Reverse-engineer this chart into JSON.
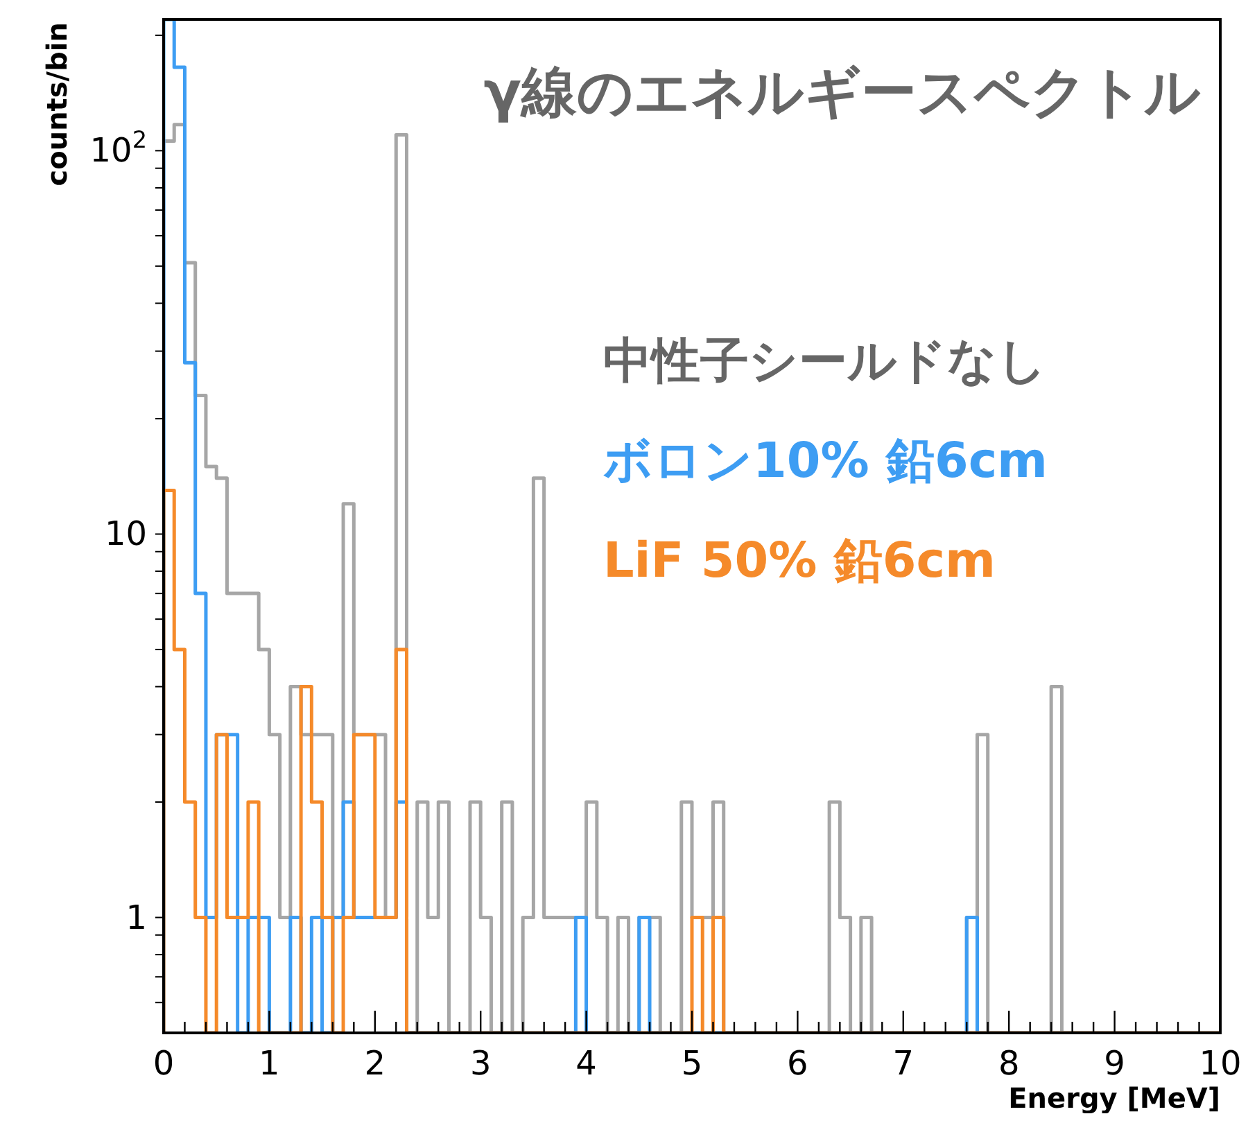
{
  "chart_data": {
    "type": "histogram",
    "title": "γ線のエネルギースペクトル",
    "xlabel": "Energy [MeV]",
    "ylabel": "counts/bin",
    "bins": [
      0,
      0.1,
      0.2,
      0.3,
      0.4,
      0.5,
      0.6,
      0.7,
      0.8,
      0.9,
      1,
      1.1,
      1.2,
      1.3,
      1.4,
      1.5,
      1.6,
      1.7,
      1.8,
      1.9,
      2,
      2.1,
      2.2,
      2.3,
      2.4,
      2.5,
      2.6,
      2.7,
      2.8,
      2.9,
      3,
      3.1,
      3.2,
      3.3,
      3.4,
      3.5,
      3.6,
      3.7,
      3.8,
      3.9,
      4,
      4.1,
      4.2,
      4.3,
      4.4,
      4.5,
      4.6,
      4.7,
      4.8,
      4.9,
      5,
      5.1,
      5.2,
      5.3,
      5.4,
      5.5,
      5.6,
      5.7,
      5.8,
      5.9,
      6,
      6.1,
      6.2,
      6.3,
      6.4,
      6.5,
      6.6,
      6.7,
      6.8,
      6.9,
      7,
      7.1,
      7.2,
      7.3,
      7.4,
      7.5,
      7.6,
      7.7,
      7.8,
      7.9,
      8,
      8.1,
      8.2,
      8.3,
      8.4,
      8.5,
      8.6,
      8.7,
      8.8,
      8.9,
      9,
      9.1,
      9.2,
      9.3,
      9.4,
      9.5,
      9.6,
      9.7,
      9.8,
      9.9,
      10
    ],
    "series": [
      {
        "name": "中性子シールドなし",
        "color": "#a6a6a6",
        "values": [
          106,
          117,
          51,
          23,
          15,
          14,
          7,
          7,
          7,
          5,
          3,
          1,
          4,
          3,
          3,
          3,
          1,
          12,
          3,
          3,
          3,
          1,
          110,
          null,
          2,
          1,
          2,
          null,
          null,
          2,
          1,
          null,
          2,
          null,
          1,
          14,
          1,
          1,
          1,
          1,
          2,
          1,
          null,
          1,
          null,
          1,
          1,
          null,
          null,
          2,
          1,
          1,
          2,
          null,
          null,
          null,
          null,
          null,
          null,
          null,
          null,
          null,
          null,
          2,
          1,
          null,
          1,
          null,
          null,
          null,
          null,
          null,
          null,
          null,
          null,
          null,
          1,
          3,
          null,
          null,
          null,
          null,
          null,
          null,
          4,
          null,
          null,
          null,
          null,
          null,
          null,
          null,
          null,
          null,
          null,
          null,
          null,
          null,
          null,
          null
        ]
      },
      {
        "name": "ボロン10% 鉛6cm",
        "color": "#3d9df3",
        "values": [
          220,
          165,
          28,
          7,
          1,
          3,
          3,
          null,
          1,
          1,
          null,
          null,
          1,
          null,
          1,
          null,
          1,
          2,
          1,
          1,
          1,
          1,
          2,
          null,
          null,
          null,
          null,
          null,
          null,
          null,
          null,
          null,
          null,
          null,
          null,
          null,
          null,
          null,
          null,
          1,
          null,
          null,
          null,
          null,
          null,
          1,
          null,
          null,
          null,
          null,
          null,
          null,
          null,
          null,
          null,
          null,
          null,
          null,
          null,
          null,
          null,
          null,
          null,
          null,
          null,
          null,
          null,
          null,
          null,
          null,
          null,
          null,
          null,
          null,
          null,
          null,
          1,
          null,
          null,
          null,
          null,
          null,
          null,
          null,
          null,
          null,
          null,
          null,
          null,
          null,
          null,
          null,
          null,
          null,
          null,
          null,
          null,
          null,
          null,
          null
        ]
      },
      {
        "name": "LiF 50% 鉛6cm",
        "color": "#f58a2a",
        "values": [
          13,
          5,
          2,
          1,
          null,
          3,
          1,
          1,
          2,
          null,
          null,
          null,
          null,
          4,
          2,
          1,
          null,
          1,
          3,
          3,
          1,
          1,
          5,
          null,
          null,
          null,
          null,
          null,
          null,
          null,
          null,
          null,
          null,
          null,
          null,
          null,
          null,
          null,
          null,
          null,
          null,
          null,
          null,
          null,
          null,
          null,
          null,
          null,
          null,
          null,
          1,
          null,
          1,
          null,
          null,
          null,
          null,
          null,
          null,
          null,
          null,
          null,
          null,
          null,
          null,
          null,
          null,
          null,
          null,
          null,
          null,
          null,
          null,
          null,
          null,
          null,
          null,
          null,
          null,
          null,
          null,
          null,
          null,
          null,
          null,
          null,
          null,
          null,
          null,
          null,
          null,
          null,
          null,
          null,
          null,
          null,
          null,
          null,
          null,
          null
        ]
      }
    ],
    "xlim": [
      0,
      10
    ],
    "ylim": [
      0.5,
      220
    ],
    "log": "y",
    "legend": "top right",
    "xticks": [
      0,
      {
        "value": 0.2,
        "label": null
      },
      {
        "value": 0.4,
        "label": null
      },
      {
        "value": 0.6,
        "label": null
      },
      {
        "value": 0.8,
        "label": null
      },
      1,
      {
        "value": 1.2,
        "label": null
      },
      {
        "value": 1.4,
        "label": null
      },
      {
        "value": 1.6,
        "label": null
      },
      {
        "value": 1.8,
        "label": null
      },
      2,
      {
        "value": 2.2,
        "label": null
      },
      {
        "value": 2.4,
        "label": null
      },
      {
        "value": 2.6,
        "label": null
      },
      {
        "value": 2.8,
        "label": null
      },
      3,
      {
        "value": 3.2,
        "label": null
      },
      {
        "value": 3.4,
        "label": null
      },
      {
        "value": 3.6,
        "label": null
      },
      {
        "value": 3.8,
        "label": null
      },
      4,
      {
        "value": 4.2,
        "label": null
      },
      {
        "value": 4.4,
        "label": null
      },
      {
        "value": 4.6,
        "label": null
      },
      {
        "value": 4.8,
        "label": null
      },
      5,
      {
        "value": 5.2,
        "label": null
      },
      {
        "value": 5.4,
        "label": null
      },
      {
        "value": 5.6,
        "label": null
      },
      {
        "value": 5.8,
        "label": null
      },
      6,
      {
        "value": 6.2,
        "label": null
      },
      {
        "value": 6.4,
        "label": null
      },
      {
        "value": 6.6,
        "label": null
      },
      {
        "value": 6.8,
        "label": null
      },
      7,
      {
        "value": 7.2,
        "label": null
      },
      {
        "value": 7.4,
        "label": null
      },
      {
        "value": 7.6,
        "label": null
      },
      {
        "value": 7.8,
        "label": null
      },
      8,
      {
        "value": 8.2,
        "label": null
      },
      {
        "value": 8.4,
        "label": null
      },
      {
        "value": 8.6,
        "label": null
      },
      {
        "value": 8.8,
        "label": null
      },
      9,
      {
        "value": 9.2,
        "label": null
      },
      {
        "value": 9.4,
        "label": null
      },
      {
        "value": 9.6,
        "label": null
      },
      {
        "value": 9.8,
        "label": null
      },
      10
    ],
    "yticks": [
      {
        "value": 0.6,
        "label": null
      },
      {
        "value": 0.7,
        "label": null
      },
      {
        "value": 0.8,
        "label": null
      },
      {
        "value": 0.9,
        "label": null
      },
      1,
      {
        "value": 2,
        "label": null
      },
      {
        "value": 3,
        "label": null
      },
      {
        "value": 4,
        "label": null
      },
      {
        "value": 5,
        "label": null
      },
      {
        "value": 6,
        "label": null
      },
      {
        "value": 7,
        "label": null
      },
      {
        "value": 8,
        "label": null
      },
      {
        "value": 9,
        "label": null
      },
      10,
      {
        "value": 20,
        "label": null
      },
      {
        "value": 30,
        "label": null
      },
      {
        "value": 40,
        "label": null
      },
      {
        "value": 50,
        "label": null
      },
      {
        "value": 60,
        "label": null
      },
      {
        "value": 70,
        "label": null
      },
      {
        "value": 80,
        "label": null
      },
      {
        "value": 90,
        "label": null
      },
      {
        "value": 100,
        "label": "10$^{2}$"
      },
      {
        "value": 200,
        "label": null
      }
    ]
  }
}
